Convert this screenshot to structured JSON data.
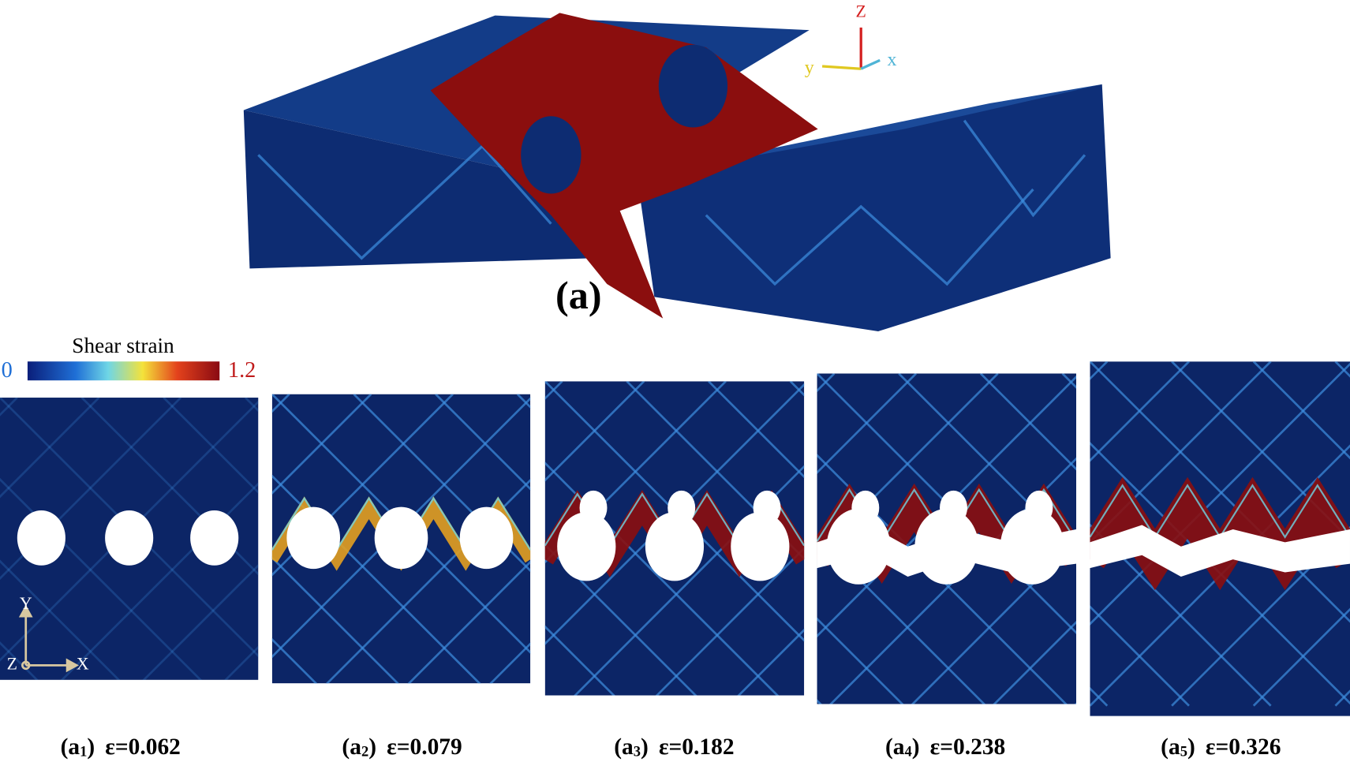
{
  "figure": {
    "main_label": "(a)",
    "axes_3d": {
      "z": "Z",
      "y": "y",
      "x": "x"
    },
    "axes_2d": {
      "y": "Y",
      "z": "Z",
      "x": "X"
    },
    "colorbar": {
      "title": "Shear strain",
      "min": 0,
      "max": 1.2
    },
    "panels": [
      {
        "tag_main": "(a",
        "tag_sub": "1",
        "tag_end": ")",
        "strain": "ε=0.062"
      },
      {
        "tag_main": "(a",
        "tag_sub": "2",
        "tag_end": ")",
        "strain": "ε=0.079"
      },
      {
        "tag_main": "(a",
        "tag_sub": "3",
        "tag_end": ")",
        "strain": "ε=0.182"
      },
      {
        "tag_main": "(a",
        "tag_sub": "4",
        "tag_end": ")",
        "strain": "ε=0.238"
      },
      {
        "tag_main": "(a",
        "tag_sub": "5",
        "tag_end": ")",
        "strain": "ε=0.326"
      }
    ]
  }
}
